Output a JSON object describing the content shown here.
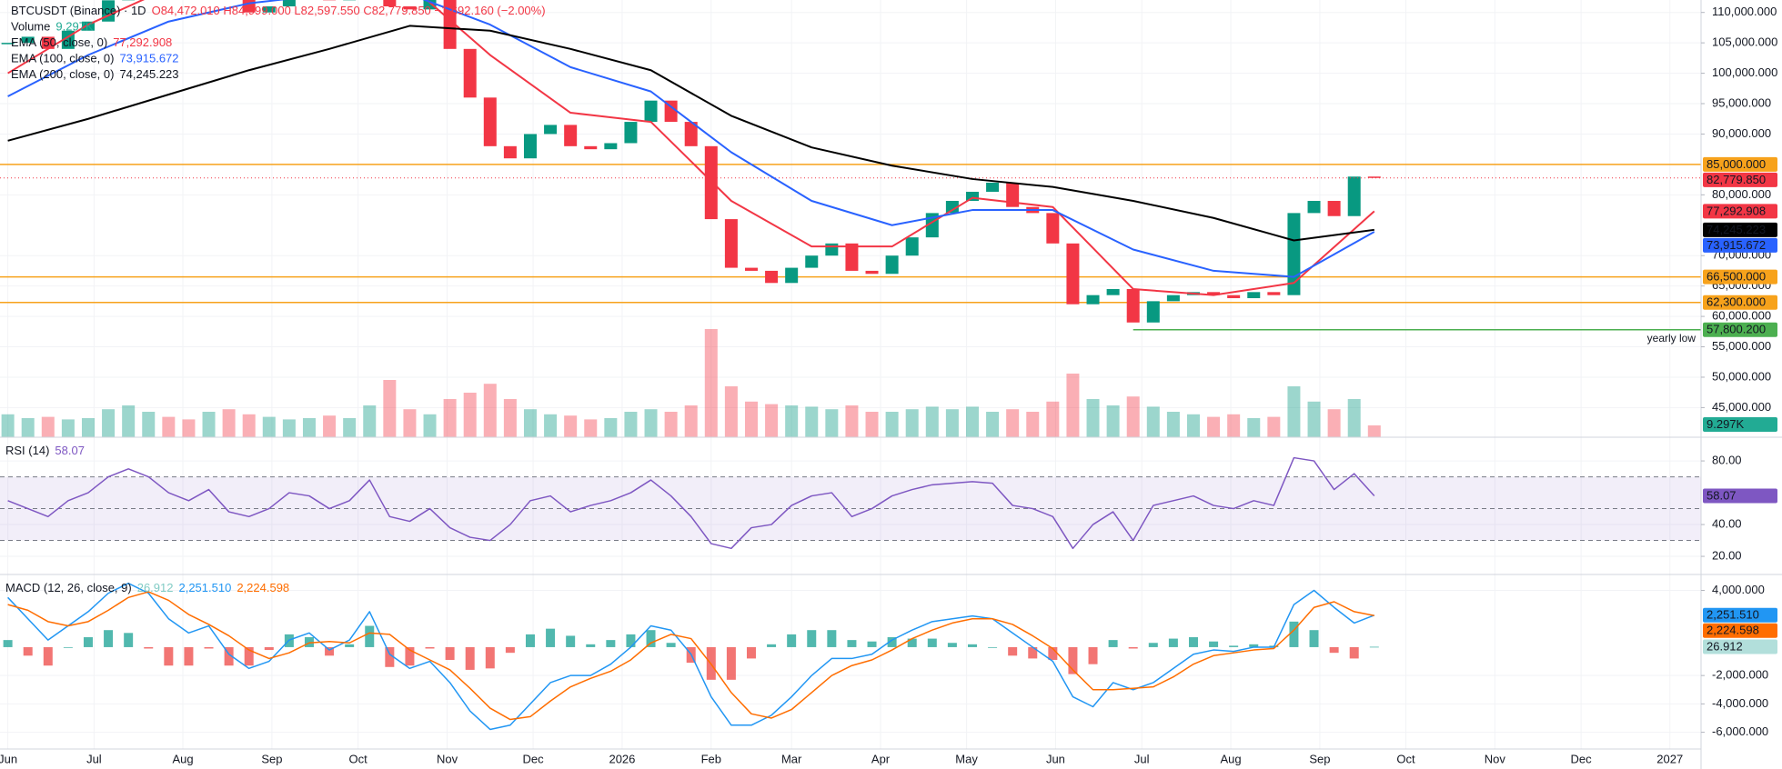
{
  "chart_data": [
    {
      "type": "candlestick",
      "title": "BTCUSDT (Binance) · 1D",
      "ohlc_text": "O84,472.010 H84,999.000 L82,597.550 C82,779.850 −1,692.160 (−2.00%)",
      "xlim": [
        -0.39,
        84.26
      ],
      "xticks": [
        {
          "value": 0,
          "label": "Jun"
        },
        {
          "value": 4.29,
          "label": "Jul"
        },
        {
          "value": 8.71,
          "label": "Aug"
        },
        {
          "value": 13.14,
          "label": "Sep"
        },
        {
          "value": 17.43,
          "label": "Oct"
        },
        {
          "value": 21.86,
          "label": "Nov"
        },
        {
          "value": 26.14,
          "label": "Dec"
        },
        {
          "value": 30.57,
          "label": "2026"
        },
        {
          "value": 35,
          "label": "Feb"
        },
        {
          "value": 39,
          "label": "Mar"
        },
        {
          "value": 43.43,
          "label": "Apr"
        },
        {
          "value": 47.71,
          "label": "May"
        },
        {
          "value": 52.14,
          "label": "Jun"
        },
        {
          "value": 56.43,
          "label": "Jul"
        },
        {
          "value": 60.86,
          "label": "Aug"
        },
        {
          "value": 65.29,
          "label": "Sep"
        },
        {
          "value": 69.57,
          "label": "Oct"
        },
        {
          "value": 74,
          "label": "Nov"
        },
        {
          "value": 78.29,
          "label": "Dec"
        },
        {
          "value": 82.71,
          "label": "2027"
        }
      ],
      "ylim": [
        40125,
        112048
      ],
      "yticks": [
        {
          "value": 110000,
          "label": "110,000.000"
        },
        {
          "value": 105000,
          "label": "105,000.000"
        },
        {
          "value": 100000,
          "label": "100,000.000"
        },
        {
          "value": 95000,
          "label": "95,000.000"
        },
        {
          "value": 90000,
          "label": "90,000.000"
        },
        {
          "value": 80000,
          "label": "80,000.000"
        },
        {
          "value": 70000,
          "label": "70,000.000"
        },
        {
          "value": 65000,
          "label": "65,000.000"
        },
        {
          "value": 60000,
          "label": "60,000.000"
        },
        {
          "value": 55000,
          "label": "55,000.000"
        },
        {
          "value": 50000,
          "label": "50,000.000"
        },
        {
          "value": 45000,
          "label": "45,000.000"
        }
      ],
      "up_color": "#089981",
      "down_color": "#f23645",
      "close": [
        105000,
        106000,
        104000,
        107000,
        108500,
        112000,
        118000,
        118500,
        117000,
        116000,
        120000,
        114000,
        110000,
        111000,
        115000,
        115500,
        112000,
        114000,
        122000,
        111000,
        110500,
        113000,
        104000,
        96000,
        88000,
        86000,
        90000,
        91500,
        88000,
        87500,
        88500,
        92000,
        95500,
        92000,
        88000,
        76000,
        68000,
        67500,
        65500,
        68000,
        70000,
        72000,
        67500,
        67000,
        70000,
        73000,
        77000,
        79000,
        80500,
        82000,
        78000,
        77000,
        72000,
        62000,
        63500,
        64500,
        59000,
        62500,
        63500,
        64000,
        63500,
        63000,
        64000,
        63500,
        77000,
        79000,
        76500,
        83000,
        82779.85
      ],
      "close_label": "82,779.850",
      "volume": {
        "name": "Volume",
        "ylim": [
          0,
          100000
        ],
        "last_label": "9.297K",
        "values": [
          18000,
          15000,
          16000,
          14000,
          15000,
          22000,
          25000,
          20000,
          16000,
          14000,
          20000,
          22000,
          18000,
          16000,
          14000,
          15000,
          17000,
          15000,
          25000,
          45000,
          22000,
          18000,
          30000,
          35000,
          42000,
          30000,
          22000,
          18000,
          17000,
          14000,
          15000,
          20000,
          22000,
          20000,
          25000,
          85000,
          40000,
          28000,
          26000,
          25000,
          24000,
          22000,
          25000,
          20000,
          20000,
          22000,
          24000,
          22000,
          24000,
          20000,
          22000,
          20000,
          28000,
          50000,
          30000,
          25000,
          32000,
          24000,
          20000,
          18000,
          16000,
          18000,
          15000,
          16000,
          40000,
          28000,
          22000,
          30000,
          9297
        ]
      },
      "series": [
        {
          "name": "EMA (50, close, 0)",
          "color": "#f23645",
          "last_label": "77,292.908",
          "x": [
            0,
            4,
            8,
            12,
            16,
            20,
            24,
            28,
            32,
            36,
            40,
            44,
            48,
            52,
            56,
            60,
            64,
            68
          ],
          "values": [
            100000,
            108000,
            114000,
            114500,
            114000,
            114500,
            103000,
            93500,
            92000,
            79000,
            71500,
            71500,
            79500,
            78000,
            64500,
            63500,
            65500,
            77292.908
          ]
        },
        {
          "name": "EMA (100, close, 0)",
          "color": "#2962ff",
          "last_label": "73,915.672",
          "x": [
            0,
            4,
            8,
            12,
            16,
            20,
            24,
            28,
            32,
            36,
            40,
            44,
            48,
            52,
            56,
            60,
            64,
            68
          ],
          "values": [
            96200,
            103000,
            108500,
            111500,
            113000,
            113000,
            108000,
            101000,
            97000,
            87000,
            79000,
            75000,
            77500,
            77500,
            71000,
            67500,
            66500,
            73915.672
          ]
        },
        {
          "name": "EMA (200, close, 0)",
          "color": "#000000",
          "last_label": "74,245.223",
          "x": [
            0,
            4,
            8,
            12,
            16,
            20,
            24,
            28,
            32,
            36,
            40,
            44,
            48,
            52,
            56,
            60,
            64,
            68
          ],
          "values": [
            88900,
            92500,
            96500,
            100500,
            104000,
            107800,
            107000,
            104000,
            100500,
            93000,
            87800,
            84800,
            82600,
            81300,
            79000,
            76200,
            72500,
            74245.223
          ]
        }
      ],
      "levels": [
        {
          "value": 85000,
          "label": "85,000.000",
          "color": "#f7a21b"
        },
        {
          "value": 66500,
          "label": "66,500.000",
          "color": "#f7a21b"
        },
        {
          "value": 62300,
          "label": "62,300.000",
          "color": "#f7a21b"
        },
        {
          "value": 57800.2,
          "label": "57,800.200",
          "color": "#4caf50",
          "start": 56,
          "annotation": "yearly low"
        }
      ]
    },
    {
      "type": "line",
      "name": "RSI (14)",
      "color": "#7e57c2",
      "last_label": "58.07",
      "ylim": [
        8.6,
        94.9
      ],
      "yticks": [
        {
          "value": 80,
          "label": "80.00"
        },
        {
          "value": 40,
          "label": "40.00"
        },
        {
          "value": 20,
          "label": "20.00"
        }
      ],
      "bands": [
        70,
        50,
        30
      ],
      "values": [
        55,
        50,
        45,
        55,
        60,
        70,
        75,
        70,
        60,
        55,
        62,
        48,
        45,
        50,
        60,
        58,
        50,
        55,
        68,
        45,
        42,
        50,
        38,
        32,
        30,
        40,
        55,
        58,
        48,
        52,
        55,
        60,
        68,
        58,
        45,
        28,
        25,
        38,
        40,
        52,
        58,
        60,
        45,
        50,
        58,
        62,
        65,
        66,
        67,
        66,
        52,
        50,
        45,
        25,
        40,
        48,
        30,
        52,
        55,
        58,
        52,
        50,
        55,
        52,
        82,
        80,
        62,
        72,
        58.07
      ]
    },
    {
      "type": "macd",
      "name": "MACD (12, 26, close, 9)",
      "ylim": [
        -7179,
        5121
      ],
      "yticks": [
        {
          "value": 4000,
          "label": "4,000.000"
        },
        {
          "value": -2000,
          "label": "-2,000.000"
        },
        {
          "value": -4000,
          "label": "-4,000.000"
        },
        {
          "value": -6000,
          "label": "-6,000.000"
        }
      ],
      "histogram": {
        "color": "#26a69a",
        "negative_color": "#ef5350",
        "last_label": "26.912",
        "values": [
          500,
          -600,
          -1300,
          0,
          700,
          1200,
          1000,
          -100,
          -1300,
          -1300,
          -100,
          -1300,
          -1300,
          -200,
          900,
          700,
          -600,
          200,
          1500,
          -1400,
          -1300,
          -100,
          -900,
          -1600,
          -1500,
          -400,
          900,
          1300,
          800,
          200,
          500,
          900,
          1200,
          300,
          -1100,
          -2300,
          -2300,
          -800,
          200,
          900,
          1200,
          1200,
          500,
          400,
          700,
          600,
          600,
          300,
          200,
          0,
          -600,
          -800,
          -900,
          -1900,
          -1200,
          500,
          -100,
          300,
          600,
          700,
          400,
          100,
          200,
          100,
          1800,
          1200,
          -400,
          -800,
          26.912
        ]
      },
      "macd": {
        "color": "#2196f3",
        "last_label": "2,251.510",
        "values": [
          3500,
          2000,
          500,
          1500,
          2500,
          3800,
          4500,
          3800,
          2000,
          1000,
          1500,
          -500,
          -1500,
          -1000,
          500,
          1000,
          -200,
          500,
          2500,
          -500,
          -1500,
          -1000,
          -2500,
          -4500,
          -5800,
          -5500,
          -4000,
          -2500,
          -2000,
          -2000,
          -1200,
          0,
          1500,
          1200,
          -500,
          -3500,
          -5500,
          -5500,
          -4800,
          -3500,
          -2000,
          -800,
          -800,
          -500,
          500,
          1200,
          1800,
          2000,
          2200,
          2000,
          1000,
          0,
          -1000,
          -3500,
          -4200,
          -2500,
          -3000,
          -2500,
          -1500,
          -500,
          -200,
          -300,
          0,
          0,
          3000,
          4000,
          2800,
          1700,
          2251.51
        ]
      },
      "signal": {
        "color": "#ff6d00",
        "last_label": "2,224.598",
        "values": [
          3000,
          2600,
          1800,
          1500,
          1800,
          2600,
          3500,
          3900,
          3300,
          2300,
          1600,
          800,
          -200,
          -800,
          -400,
          300,
          400,
          300,
          1000,
          900,
          -200,
          -900,
          -1600,
          -2900,
          -4300,
          -5100,
          -4900,
          -3800,
          -2800,
          -2200,
          -1700,
          -900,
          300,
          900,
          600,
          -1200,
          -3200,
          -4700,
          -5000,
          -4400,
          -3200,
          -2000,
          -1300,
          -900,
          -200,
          600,
          1200,
          1700,
          2000,
          2000,
          1600,
          800,
          -100,
          -1600,
          -3000,
          -3000,
          -2900,
          -2800,
          -2100,
          -1200,
          -600,
          -400,
          -200,
          -100,
          1200,
          2800,
          3200,
          2500,
          2224.598
        ]
      }
    }
  ]
}
